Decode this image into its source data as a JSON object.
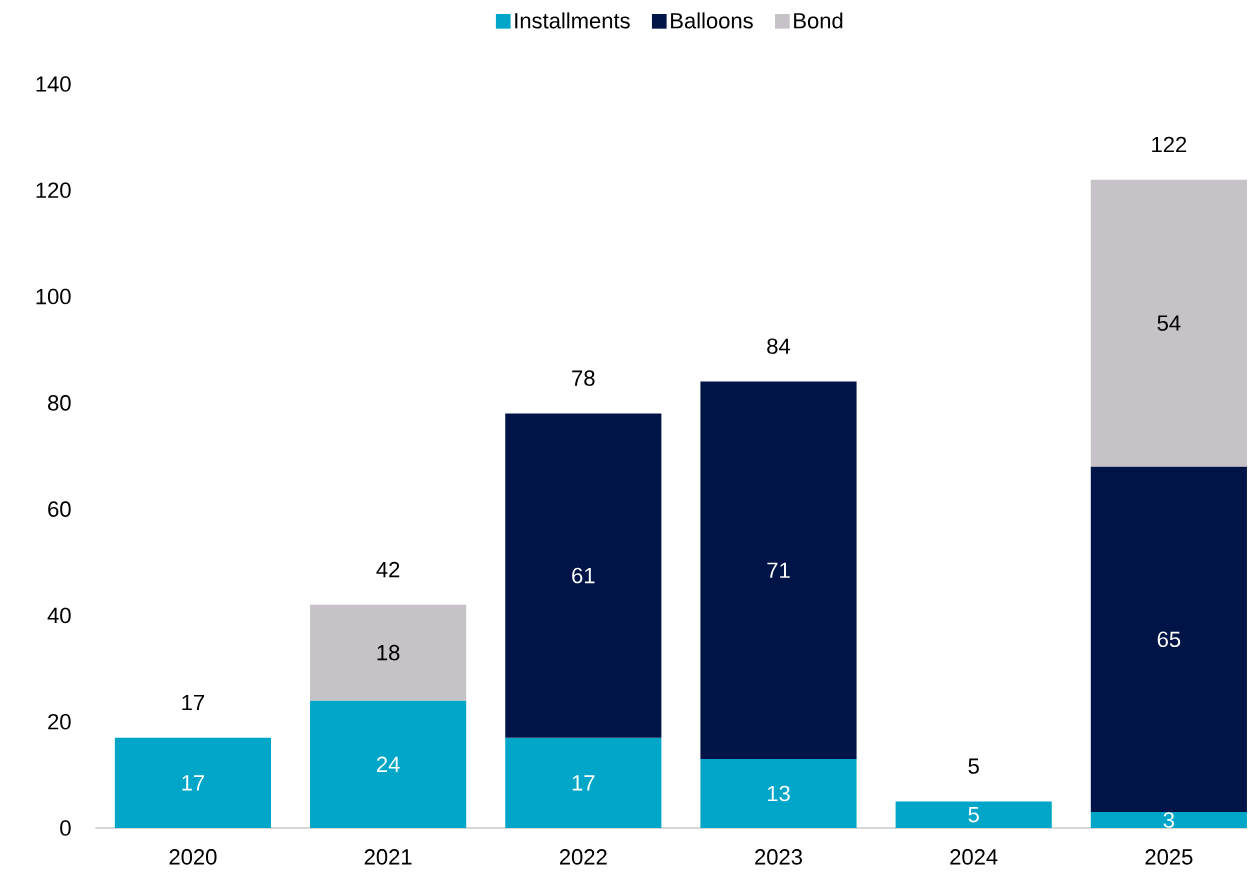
{
  "chart_data": {
    "type": "bar",
    "stacked": true,
    "categories": [
      "2020",
      "2021",
      "2022",
      "2023",
      "2024",
      "2025"
    ],
    "series": [
      {
        "name": "Installments",
        "color": "#00a6c8",
        "values": [
          17,
          24,
          17,
          13,
          5,
          3
        ],
        "value_labels": [
          "17",
          "24",
          "17",
          "13",
          "5",
          "3"
        ]
      },
      {
        "name": "Balloons",
        "color": "#001447",
        "values": [
          null,
          null,
          61,
          71,
          null,
          65
        ],
        "value_labels": [
          null,
          null,
          "61",
          "71",
          null,
          "65"
        ]
      },
      {
        "name": "Bond",
        "color": "#c6c2c7",
        "values": [
          null,
          18,
          null,
          null,
          null,
          54
        ],
        "value_labels": [
          null,
          "18",
          null,
          null,
          null,
          "54"
        ]
      }
    ],
    "totals": [
      "17",
      "42",
      "78",
      "84",
      "5",
      "122"
    ],
    "ylim": [
      0,
      140
    ],
    "yticks": [
      0,
      20,
      40,
      60,
      80,
      100,
      120,
      140
    ],
    "grid": false,
    "legend": "top"
  }
}
